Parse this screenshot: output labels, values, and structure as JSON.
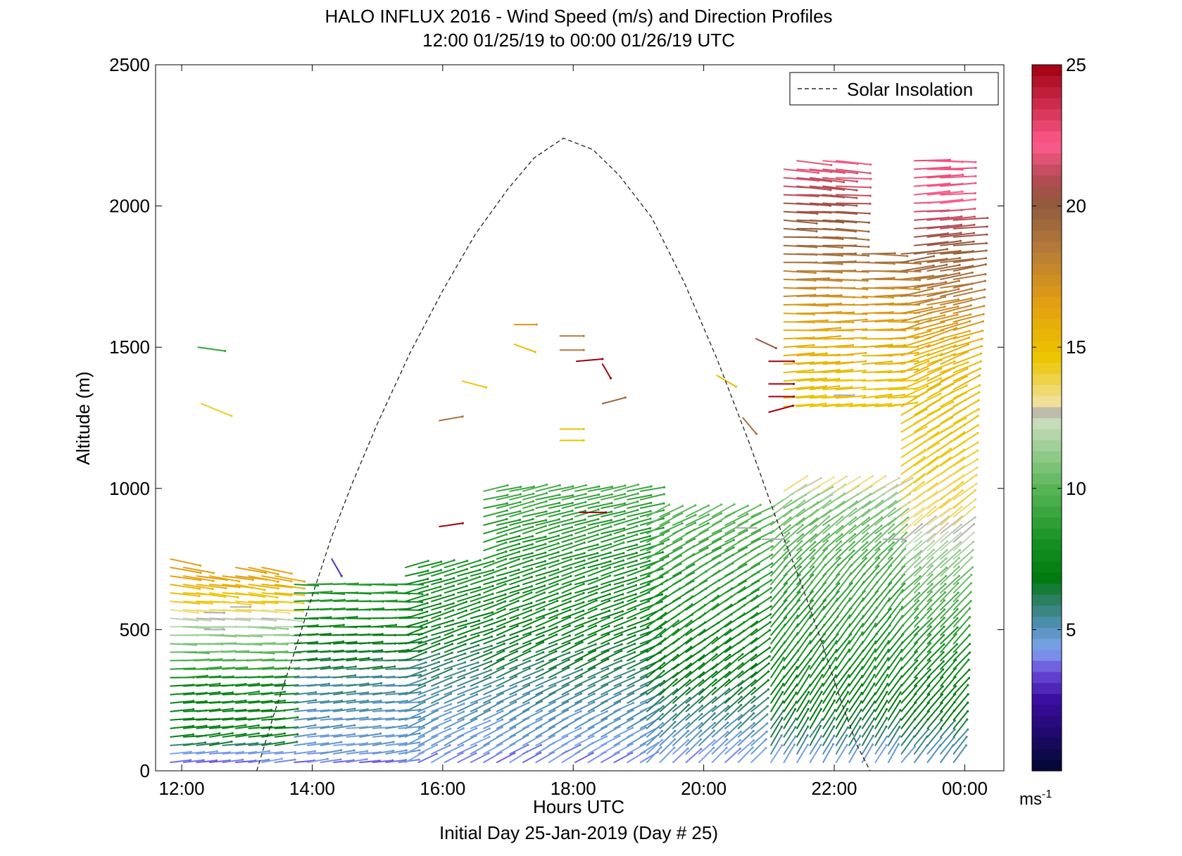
{
  "chart_data": {
    "type": "wind_barb_profile",
    "title": "HALO INFLUX 2016 - Wind Speed (m/s) and Direction Profiles",
    "subtitle": "12:00 01/25/19 to 00:00 01/26/19  UTC",
    "xlabel": "Hours UTC",
    "xlabel2": "Initial Day 25-Jan-2019 (Day # 25)",
    "ylabel": "Altitude (m)",
    "xlim": [
      11.6,
      24.6
    ],
    "ylim": [
      0,
      2500
    ],
    "xticks": [
      12,
      14,
      16,
      18,
      20,
      22,
      24
    ],
    "xtick_labels": [
      "12:00",
      "14:00",
      "16:00",
      "18:00",
      "20:00",
      "22:00",
      "00:00"
    ],
    "yticks": [
      0,
      500,
      1000,
      1500,
      2000,
      2500
    ],
    "ytick_labels": [
      "0",
      "500",
      "1000",
      "1500",
      "2000",
      "2500"
    ],
    "legend": {
      "label": "Solar Insolation",
      "position": "top-right",
      "style": "dashed"
    },
    "colorbar": {
      "range": [
        0,
        25
      ],
      "ticks": [
        5,
        10,
        15,
        20,
        25
      ],
      "tick_labels": [
        "5",
        "10",
        "15",
        "20",
        "25"
      ],
      "unit_label": "ms",
      "unit_exponent": "-1",
      "stops": [
        {
          "v": 0,
          "c": "#000830"
        },
        {
          "v": 2.5,
          "c": "#3a0ca0"
        },
        {
          "v": 3.5,
          "c": "#6a4ad8"
        },
        {
          "v": 4.3,
          "c": "#7fa4ef"
        },
        {
          "v": 5.2,
          "c": "#4d8fb0"
        },
        {
          "v": 6,
          "c": "#2e7f66"
        },
        {
          "v": 6.8,
          "c": "#007a10"
        },
        {
          "v": 8,
          "c": "#12901f"
        },
        {
          "v": 10,
          "c": "#58b556"
        },
        {
          "v": 12.3,
          "c": "#c6ddbb"
        },
        {
          "v": 12.6,
          "c": "#b0b0b0"
        },
        {
          "v": 13,
          "c": "#f1e2a0"
        },
        {
          "v": 14.6,
          "c": "#ecc500"
        },
        {
          "v": 16.5,
          "c": "#e4a10f"
        },
        {
          "v": 18.5,
          "c": "#b57a3a"
        },
        {
          "v": 20,
          "c": "#8f5c3c"
        },
        {
          "v": 21,
          "c": "#b54a54"
        },
        {
          "v": 22.2,
          "c": "#ff5c8e"
        },
        {
          "v": 23.5,
          "c": "#d03050"
        },
        {
          "v": 25,
          "c": "#a00010"
        }
      ]
    },
    "solar_insolation": {
      "x": [
        13.15,
        13.4,
        13.7,
        14.0,
        14.3,
        14.6,
        15.0,
        15.5,
        16.0,
        16.5,
        17.0,
        17.4,
        17.85,
        18.3,
        18.7,
        19.2,
        19.7,
        20.2,
        20.7,
        21.1,
        21.5,
        21.8,
        22.1,
        22.35,
        22.55
      ],
      "y": [
        0,
        190,
        400,
        620,
        830,
        1010,
        1230,
        1480,
        1700,
        1900,
        2060,
        2170,
        2240,
        2200,
        2110,
        1960,
        1730,
        1460,
        1160,
        900,
        660,
        460,
        250,
        90,
        0
      ]
    },
    "regimes": [
      {
        "x0": 11.8,
        "x1": 13.7,
        "spd": [
          [
            0,
            3.5
          ],
          [
            60,
            4.5
          ],
          [
            110,
            7.2
          ],
          [
            300,
            7.4
          ],
          [
            420,
            10.2
          ],
          [
            520,
            11.8
          ],
          [
            560,
            13.4
          ],
          [
            620,
            14.6
          ],
          [
            700,
            16.5
          ],
          [
            770,
            16.7
          ]
        ],
        "dir": [
          [
            0,
            8
          ],
          [
            300,
            4
          ],
          [
            600,
            -5
          ],
          [
            780,
            -14
          ]
        ],
        "top": 760,
        "toplist": [
          760,
          720,
          710,
          700,
          700,
          730,
          740,
          720,
          700,
          690
        ]
      },
      {
        "x0": 13.7,
        "x1": 15.4,
        "spd": [
          [
            0,
            3.2
          ],
          [
            50,
            4.5
          ],
          [
            140,
            4.8
          ],
          [
            300,
            5.5
          ],
          [
            420,
            6.5
          ],
          [
            520,
            7.5
          ],
          [
            650,
            8.6
          ]
        ],
        "dir": [
          [
            0,
            8
          ],
          [
            300,
            5
          ],
          [
            650,
            0
          ]
        ],
        "top": 680
      },
      {
        "x0": 15.4,
        "x1": 16.6,
        "spd": [
          [
            0,
            3.8
          ],
          [
            80,
            4.5
          ],
          [
            250,
            5.2
          ],
          [
            400,
            6.3
          ],
          [
            550,
            7.4
          ],
          [
            720,
            8
          ]
        ],
        "dir": [
          [
            0,
            28
          ],
          [
            300,
            22
          ],
          [
            720,
            15
          ]
        ],
        "top": 720
      },
      {
        "x0": 16.6,
        "x1": 19.1,
        "spd": [
          [
            0,
            3.6
          ],
          [
            80,
            4.5
          ],
          [
            220,
            5.2
          ],
          [
            380,
            6.4
          ],
          [
            540,
            7.3
          ],
          [
            800,
            8.2
          ],
          [
            1020,
            9.5
          ]
        ],
        "dir": [
          [
            0,
            30
          ],
          [
            400,
            24
          ],
          [
            1020,
            12
          ]
        ],
        "top": 1000
      },
      {
        "x0": 19.1,
        "x1": 21.0,
        "spd": [
          [
            0,
            4
          ],
          [
            100,
            5
          ],
          [
            300,
            6.8
          ],
          [
            560,
            8
          ],
          [
            800,
            9.5
          ],
          [
            950,
            10.3
          ]
        ],
        "dir": [
          [
            0,
            45
          ],
          [
            500,
            35
          ],
          [
            950,
            25
          ]
        ],
        "top": 900
      },
      {
        "x0": 21.0,
        "x1": 23.0,
        "spd": [
          [
            0,
            4
          ],
          [
            100,
            6
          ],
          [
            300,
            7.5
          ],
          [
            600,
            9
          ],
          [
            850,
            10.5
          ],
          [
            950,
            11
          ],
          [
            1000,
            13.6
          ],
          [
            1200,
            14.4
          ],
          [
            1400,
            15
          ],
          [
            1600,
            16.5
          ],
          [
            1800,
            18.8
          ],
          [
            2000,
            20.5
          ],
          [
            2150,
            22
          ]
        ],
        "dir": [
          [
            0,
            60
          ],
          [
            650,
            50
          ],
          [
            1000,
            30
          ],
          [
            1300,
            5
          ],
          [
            2200,
            -6
          ]
        ],
        "top": 2150,
        "gaps": [
          [
            1000,
            1280
          ]
        ],
        "colmax": [
          950,
          2150,
          2170,
          2130,
          2170,
          2170,
          1300,
          1850,
          1850,
          1800,
          1800
        ]
      },
      {
        "x0": 23.0,
        "x1": 24.0,
        "spd": [
          [
            0,
            4.5
          ],
          [
            150,
            6.5
          ],
          [
            450,
            8.5
          ],
          [
            700,
            11
          ],
          [
            900,
            13.6
          ],
          [
            1200,
            14.6
          ],
          [
            1450,
            15.5
          ],
          [
            1600,
            17.5
          ],
          [
            1800,
            19.5
          ],
          [
            2000,
            21.8
          ],
          [
            2200,
            23
          ]
        ],
        "dir": [
          [
            0,
            52
          ],
          [
            600,
            45
          ],
          [
            900,
            38
          ],
          [
            1300,
            28
          ],
          [
            1700,
            10
          ],
          [
            2200,
            0
          ]
        ],
        "top": 2180,
        "colmax": [
          1850,
          2170,
          2170,
          2170,
          1950,
          1950
        ]
      }
    ],
    "isolated_barbs": [
      {
        "x": 12.25,
        "y": 1500,
        "ang": -8,
        "len": 0.42,
        "spd": 9
      },
      {
        "x": 12.3,
        "y": 1300,
        "ang": -22,
        "len": 0.5,
        "spd": 14.2
      },
      {
        "x": 14.3,
        "y": 750,
        "ang": -60,
        "len": 0.3,
        "spd": 3
      },
      {
        "x": 16.3,
        "y": 1380,
        "ang": -15,
        "len": 0.38,
        "spd": 14.5
      },
      {
        "x": 15.95,
        "y": 1240,
        "ang": 10,
        "len": 0.36,
        "spd": 19
      },
      {
        "x": 15.95,
        "y": 865,
        "ang": 8,
        "len": 0.36,
        "spd": 25
      },
      {
        "x": 17.1,
        "y": 1580,
        "ang": 0,
        "len": 0.34,
        "spd": 17
      },
      {
        "x": 17.1,
        "y": 1510,
        "ang": -20,
        "len": 0.34,
        "spd": 15
      },
      {
        "x": 17.8,
        "y": 1540,
        "ang": 0,
        "len": 0.36,
        "spd": 18.5
      },
      {
        "x": 17.8,
        "y": 1490,
        "ang": 0,
        "len": 0.36,
        "spd": 18.5
      },
      {
        "x": 17.8,
        "y": 1210,
        "ang": 0,
        "len": 0.36,
        "spd": 14.6
      },
      {
        "x": 17.8,
        "y": 1170,
        "ang": 0,
        "len": 0.36,
        "spd": 14.6
      },
      {
        "x": 18.1,
        "y": 915,
        "ang": 0,
        "len": 0.4,
        "spd": 25
      },
      {
        "x": 18.05,
        "y": 1450,
        "ang": 5,
        "len": 0.4,
        "spd": 25
      },
      {
        "x": 18.45,
        "y": 1440,
        "ang": -60,
        "len": 0.25,
        "spd": 25
      },
      {
        "x": 18.45,
        "y": 1300,
        "ang": 15,
        "len": 0.36,
        "spd": 19.5
      },
      {
        "x": 20.2,
        "y": 1400,
        "ang": -30,
        "len": 0.34,
        "spd": 15
      },
      {
        "x": 20.6,
        "y": 1250,
        "ang": -50,
        "len": 0.32,
        "spd": 19
      },
      {
        "x": 20.8,
        "y": 1530,
        "ang": -25,
        "len": 0.34,
        "spd": 20.5
      },
      {
        "x": 21.0,
        "y": 1450,
        "ang": 0,
        "len": 0.38,
        "spd": 25
      },
      {
        "x": 21.0,
        "y": 1370,
        "ang": 0,
        "len": 0.38,
        "spd": 25
      },
      {
        "x": 21.0,
        "y": 1325,
        "ang": 0,
        "len": 0.38,
        "spd": 25
      },
      {
        "x": 21.0,
        "y": 1270,
        "ang": 15,
        "len": 0.38,
        "spd": 25
      }
    ],
    "gray_barbs": [
      {
        "x": 12.35,
        "y": 500,
        "spd": 12.6
      },
      {
        "x": 12.35,
        "y": 560,
        "spd": 12.6
      },
      {
        "x": 12.75,
        "y": 580,
        "spd": 12.6
      },
      {
        "x": 20.5,
        "y": 860,
        "spd": 12.6
      },
      {
        "x": 20.9,
        "y": 820,
        "spd": 12.6
      },
      {
        "x": 22.0,
        "y": 1330,
        "spd": 12.6
      },
      {
        "x": 22.75,
        "y": 820,
        "spd": 12.6
      }
    ]
  }
}
